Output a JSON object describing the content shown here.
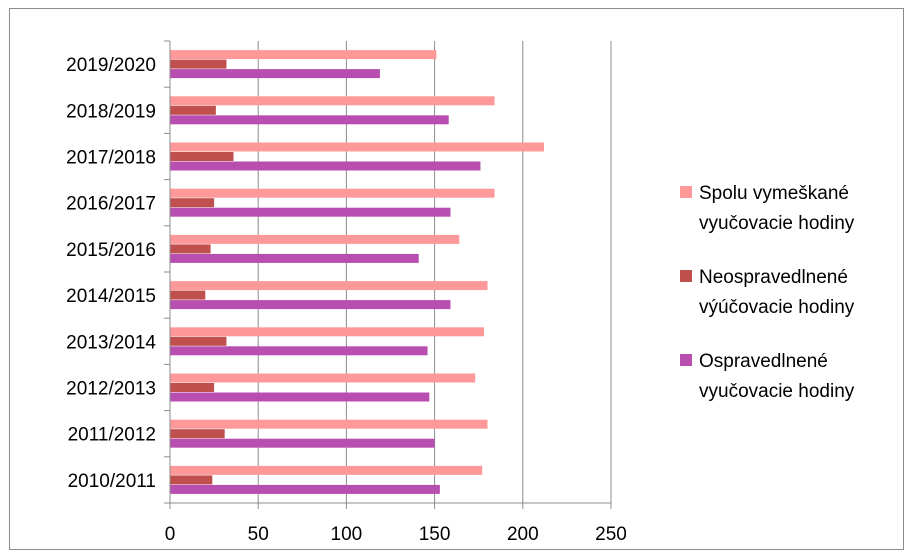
{
  "chart_data": {
    "type": "bar",
    "orientation": "horizontal",
    "categories": [
      "2010/2011",
      "2011/2012",
      "2012/2013",
      "2013/2014",
      "2014/2015",
      "2015/2016",
      "2016/2017",
      "2017/2018",
      "2018/2019",
      "2019/2020"
    ],
    "series": [
      {
        "name": "Spolu vymeškané vyučovacie hodiny",
        "legend_lines": [
          "Spolu vymeškané",
          "vyučovacie hodiny"
        ],
        "color": "#ff9999",
        "values": [
          177,
          180,
          173,
          178,
          180,
          164,
          184,
          212,
          184,
          151
        ]
      },
      {
        "name": "Neospravedlnené výúčovacie hodiny",
        "legend_lines": [
          "Neospravedlnené",
          "výúčovacie hodiny"
        ],
        "color": "#c0504d",
        "values": [
          24,
          31,
          25,
          32,
          20,
          23,
          25,
          36,
          26,
          32
        ]
      },
      {
        "name": "Ospravedlnené vyučovacie hodiny",
        "legend_lines": [
          "Ospravedlnené",
          "vyučovacie hodiny"
        ],
        "color": "#b84fb0",
        "values": [
          153,
          150,
          147,
          146,
          159,
          141,
          159,
          176,
          158,
          119
        ]
      }
    ],
    "x_ticks": [
      0,
      50,
      100,
      150,
      200,
      250
    ],
    "xlim": [
      0,
      250
    ],
    "grid": true,
    "legend_position": "right"
  }
}
